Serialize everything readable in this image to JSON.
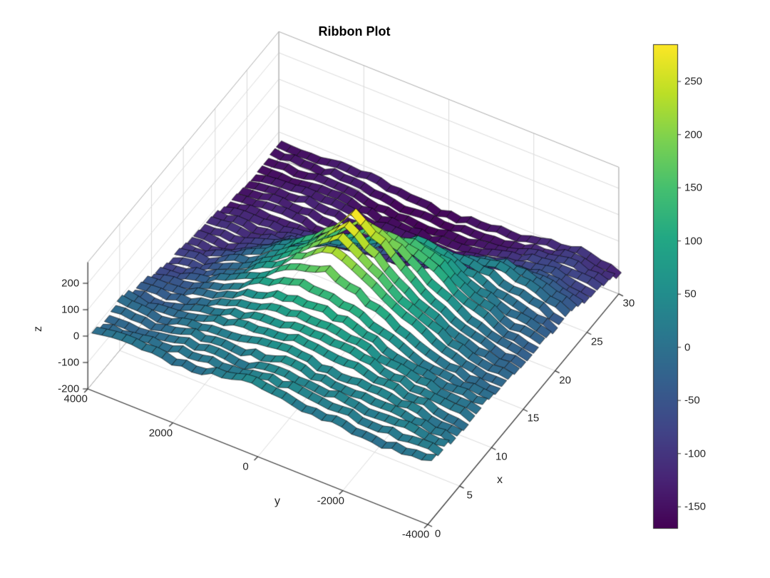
{
  "chart_data": {
    "type": "ribbon",
    "title": "Ribbon Plot",
    "xlabel": "x",
    "ylabel": "y",
    "zlabel": "z",
    "xlim": [
      0,
      30
    ],
    "ylim": [
      -4000,
      4000
    ],
    "zlim": [
      -200,
      280
    ],
    "x_ticks": [
      0,
      5,
      10,
      15,
      20,
      25,
      30
    ],
    "y_ticks": [
      -4000,
      -2000,
      0,
      2000,
      4000
    ],
    "z_ticks": [
      -200,
      -100,
      0,
      100,
      200
    ],
    "grid": true,
    "grid_color": "#d9d9d9",
    "axis_color": "#333333",
    "box_color": "#aaaaaa",
    "edge_color": "rgba(0,0,0,0.85)",
    "colorbar": {
      "ticks": [
        -150,
        -100,
        -50,
        0,
        50,
        100,
        150,
        200,
        250
      ],
      "cmin": -170,
      "cmax": 285,
      "position": "right"
    },
    "colormap": [
      "#440154",
      "#482475",
      "#414487",
      "#355f8d",
      "#2a788e",
      "#21918c",
      "#22a884",
      "#44bf70",
      "#7ad151",
      "#bddf26",
      "#fde725"
    ],
    "x_grid": [
      1,
      2.5,
      5,
      7.5,
      10,
      12.5,
      15,
      17.5,
      20,
      22.5,
      25,
      27.5,
      30
    ],
    "y_grid": [
      -4000,
      -3200,
      -2400,
      -1600,
      -800,
      0,
      800,
      1600,
      2400,
      3200,
      4000
    ],
    "z_grid": [
      [
        20,
        10,
        0,
        10,
        25,
        35,
        20,
        5,
        -5,
        5,
        0
      ],
      [
        15,
        25,
        10,
        30,
        45,
        30,
        15,
        25,
        10,
        -10,
        -15
      ],
      [
        5,
        20,
        35,
        50,
        40,
        60,
        45,
        20,
        0,
        -20,
        -10
      ],
      [
        0,
        10,
        30,
        55,
        75,
        90,
        70,
        40,
        10,
        -30,
        -40
      ],
      [
        -10,
        0,
        25,
        60,
        110,
        140,
        120,
        60,
        0,
        -50,
        -70
      ],
      [
        -20,
        -5,
        35,
        90,
        180,
        255,
        170,
        80,
        0,
        -60,
        -80
      ],
      [
        -25,
        -10,
        30,
        100,
        210,
        280,
        150,
        60,
        -30,
        -80,
        -100
      ],
      [
        -30,
        -20,
        40,
        130,
        160,
        130,
        70,
        0,
        -60,
        -100,
        -110
      ],
      [
        -40,
        -10,
        30,
        70,
        90,
        30,
        -40,
        -80,
        -100,
        -120,
        -125
      ],
      [
        -50,
        0,
        40,
        -10,
        -80,
        -120,
        -140,
        -130,
        -120,
        -130,
        -135
      ],
      [
        -70,
        -40,
        -60,
        -100,
        -140,
        -160,
        -150,
        -140,
        -130,
        -140,
        -145
      ],
      [
        -90,
        -80,
        -100,
        -120,
        -150,
        -165,
        -155,
        -145,
        -135,
        -140,
        -150
      ],
      [
        -120,
        -95,
        -110,
        -130,
        -150,
        -160,
        -155,
        -150,
        -140,
        -145,
        -155
      ]
    ],
    "ribbon_count": 30,
    "ribbon_width": 0.8
  }
}
